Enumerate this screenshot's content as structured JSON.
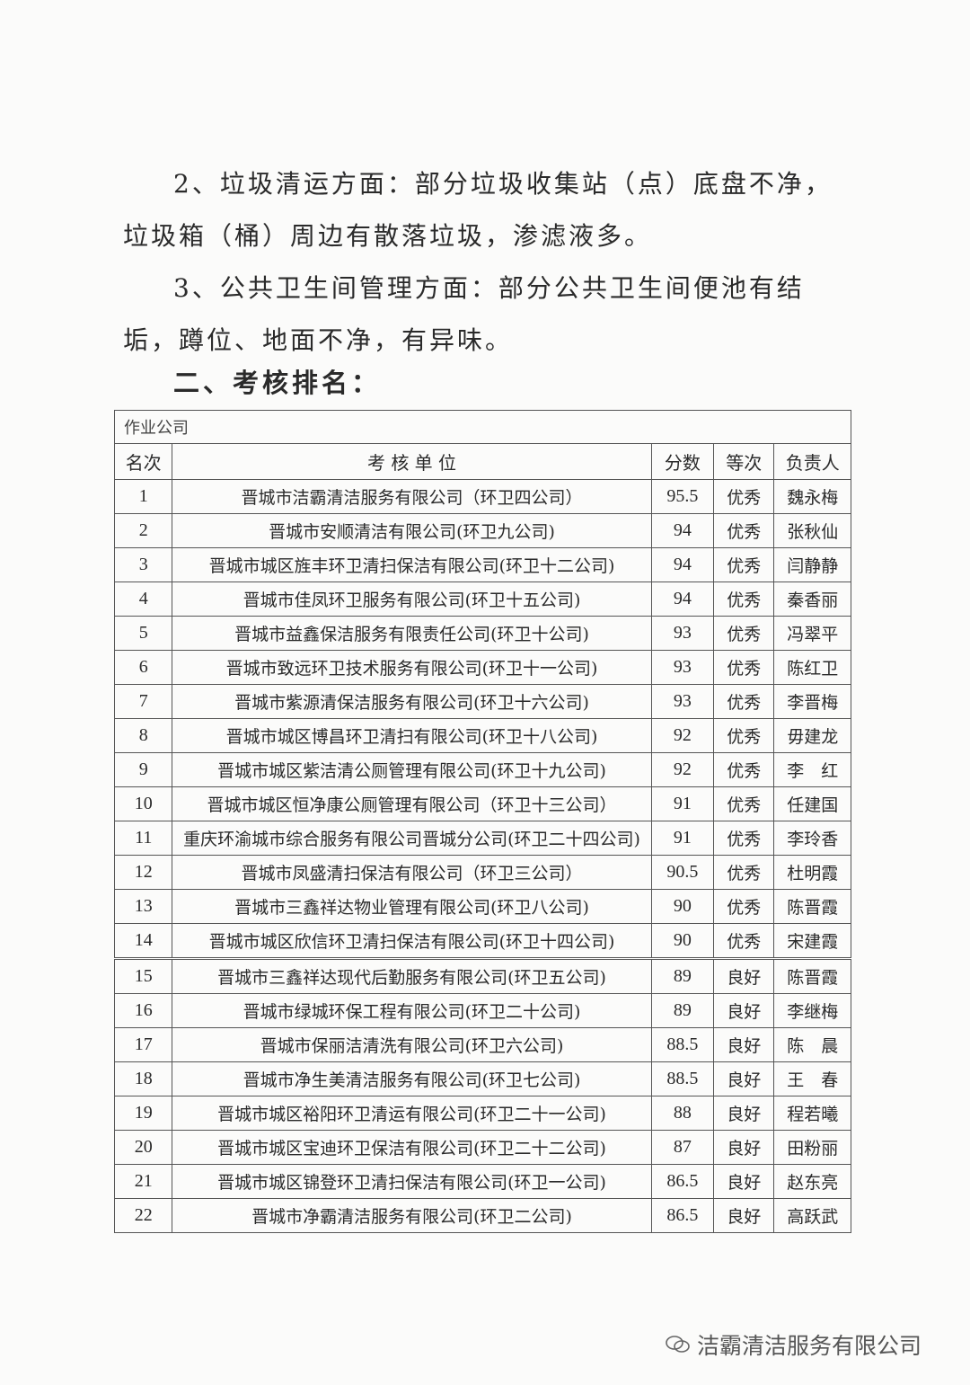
{
  "paragraphs": [
    "2、垃圾清运方面：部分垃圾收集站（点）底盘不净，垃圾箱（桶）周边有散落垃圾，渗滤液多。",
    "3、公共卫生间管理方面：部分公共卫生间便池有结垢，蹲位、地面不净，有异味。"
  ],
  "section_heading": "二、考核排名：",
  "table": {
    "caption": "作业公司",
    "headers": [
      "名次",
      "考 核 单 位",
      "分数",
      "等次",
      "负责人"
    ],
    "rows": [
      [
        "1",
        "晋城市洁霸清洁服务有限公司（环卫四公司）",
        "95.5",
        "优秀",
        "魏永梅"
      ],
      [
        "2",
        "晋城市安顺清洁有限公司(环卫九公司)",
        "94",
        "优秀",
        "张秋仙"
      ],
      [
        "3",
        "晋城市城区旌丰环卫清扫保洁有限公司(环卫十二公司)",
        "94",
        "优秀",
        "闫静静"
      ],
      [
        "4",
        "晋城市佳凤环卫服务有限公司(环卫十五公司)",
        "94",
        "优秀",
        "秦香丽"
      ],
      [
        "5",
        "晋城市益鑫保洁服务有限责任公司(环卫十公司)",
        "93",
        "优秀",
        "冯翠平"
      ],
      [
        "6",
        "晋城市致远环卫技术服务有限公司(环卫十一公司)",
        "93",
        "优秀",
        "陈红卫"
      ],
      [
        "7",
        "晋城市紫源清保洁服务有限公司(环卫十六公司)",
        "93",
        "优秀",
        "李晋梅"
      ],
      [
        "8",
        "晋城市城区博昌环卫清扫有限公司(环卫十八公司)",
        "92",
        "优秀",
        "毋建龙"
      ],
      [
        "9",
        "晋城市城区紫洁清公厕管理有限公司(环卫十九公司)",
        "92",
        "优秀",
        "李　红"
      ],
      [
        "10",
        "晋城市城区恒净康公厕管理有限公司（环卫十三公司）",
        "91",
        "优秀",
        "任建国"
      ],
      [
        "11",
        "重庆环渝城市综合服务有限公司晋城分公司(环卫二十四公司)",
        "91",
        "优秀",
        "李玲香"
      ],
      [
        "12",
        "晋城市凤盛清扫保洁有限公司（环卫三公司）",
        "90.5",
        "优秀",
        "杜明霞"
      ],
      [
        "13",
        "晋城市三鑫祥达物业管理有限公司(环卫八公司)",
        "90",
        "优秀",
        "陈晋霞"
      ],
      [
        "14",
        "晋城市城区欣信环卫清扫保洁有限公司(环卫十四公司)",
        "90",
        "优秀",
        "宋建霞"
      ],
      [
        "15",
        "晋城市三鑫祥达现代后勤服务有限公司(环卫五公司)",
        "89",
        "良好",
        "陈晋霞"
      ],
      [
        "16",
        "晋城市绿城环保工程有限公司(环卫二十公司)",
        "89",
        "良好",
        "李继梅"
      ],
      [
        "17",
        "晋城市保丽洁清洗有限公司(环卫六公司)",
        "88.5",
        "良好",
        "陈　晨"
      ],
      [
        "18",
        "晋城市净生美清洁服务有限公司(环卫七公司)",
        "88.5",
        "良好",
        "王　春"
      ],
      [
        "19",
        "晋城市城区裕阳环卫清运有限公司(环卫二十一公司)",
        "88",
        "良好",
        "程若曦"
      ],
      [
        "20",
        "晋城市城区宝迪环卫保洁有限公司(环卫二十二公司)",
        "87",
        "良好",
        "田粉丽"
      ],
      [
        "21",
        "晋城市城区锦登环卫清扫保洁有限公司(环卫一公司)",
        "86.5",
        "良好",
        "赵东亮"
      ],
      [
        "22",
        "晋城市净霸清洁服务有限公司(环卫二公司)",
        "86.5",
        "良好",
        "高跃武"
      ]
    ]
  },
  "watermark": {
    "icon": "wechat-icon",
    "text": "洁霸清洁服务有限公司"
  }
}
